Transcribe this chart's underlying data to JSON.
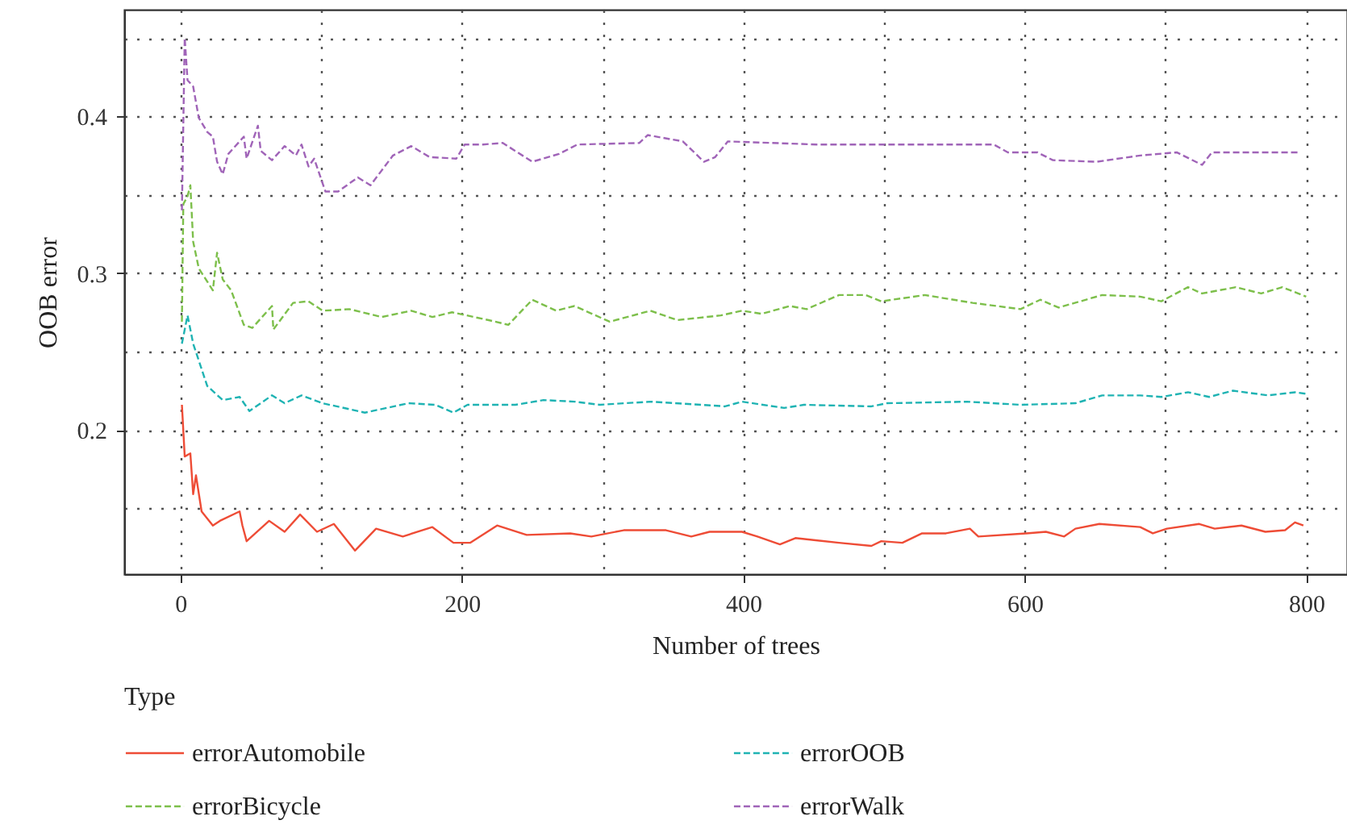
{
  "chart_data": {
    "type": "line",
    "xlabel": "Number of trees",
    "ylabel": "OOB error",
    "legend_title": "Type",
    "legend": "bottom",
    "grid": true,
    "xlim": [
      -40,
      829
    ],
    "xticks": [
      0,
      {
        "value": 100,
        "label": null
      },
      200,
      {
        "value": 300,
        "label": null
      },
      400,
      {
        "value": 500,
        "label": null
      },
      600,
      {
        "value": 700,
        "label": null
      },
      800
    ],
    "ylim": [
      0.108,
      0.468
    ],
    "yticks": [
      {
        "value": 0.15,
        "label": null
      },
      0.2,
      {
        "value": 0.25,
        "label": null
      },
      0.3,
      {
        "value": 0.35,
        "label": null
      },
      0.4,
      {
        "value": 0.45,
        "label": null
      }
    ],
    "series": [
      {
        "name": "errorAutomobile",
        "color": "#ee4c36",
        "line_style": "solid",
        "x": [
          1,
          3,
          7,
          9,
          11,
          15,
          23,
          28,
          42,
          44,
          47,
          63,
          74,
          85,
          97,
          109,
          124,
          139,
          158,
          179,
          194,
          206,
          225,
          246,
          277,
          292,
          315,
          345,
          363,
          376,
          399,
          410,
          426,
          437,
          468,
          491,
          498,
          513,
          527,
          544,
          561,
          567,
          601,
          615,
          628,
          636,
          653,
          682,
          691,
          701,
          724,
          735,
          754,
          771,
          785,
          792,
          798
        ],
        "values": [
          0.216,
          0.183,
          0.185,
          0.159,
          0.171,
          0.148,
          0.139,
          0.142,
          0.148,
          0.139,
          0.129,
          0.142,
          0.135,
          0.146,
          0.135,
          0.14,
          0.123,
          0.137,
          0.132,
          0.138,
          0.128,
          0.128,
          0.139,
          0.133,
          0.134,
          0.132,
          0.136,
          0.136,
          0.132,
          0.135,
          0.135,
          0.132,
          0.127,
          0.131,
          0.128,
          0.126,
          0.129,
          0.128,
          0.134,
          0.134,
          0.137,
          0.132,
          0.134,
          0.135,
          0.132,
          0.137,
          0.14,
          0.138,
          0.134,
          0.137,
          0.14,
          0.137,
          0.139,
          0.135,
          0.136,
          0.141,
          0.139
        ]
      },
      {
        "name": "errorBicycle",
        "color": "#7dbf4b",
        "line_style": "dashed",
        "x": [
          1,
          2,
          5,
          7,
          9,
          13,
          23,
          26,
          30,
          36,
          45,
          51,
          65,
          66,
          80,
          91,
          101,
          120,
          143,
          164,
          179,
          193,
          219,
          233,
          250,
          267,
          280,
          305,
          334,
          353,
          384,
          399,
          413,
          433,
          445,
          468,
          487,
          498,
          529,
          563,
          597,
          611,
          624,
          655,
          682,
          697,
          716,
          726,
          750,
          768,
          783,
          800
        ],
        "values": [
          0.269,
          0.344,
          0.349,
          0.356,
          0.32,
          0.303,
          0.289,
          0.313,
          0.296,
          0.289,
          0.267,
          0.265,
          0.279,
          0.264,
          0.281,
          0.282,
          0.276,
          0.277,
          0.272,
          0.276,
          0.272,
          0.275,
          0.27,
          0.267,
          0.283,
          0.276,
          0.279,
          0.269,
          0.276,
          0.27,
          0.273,
          0.276,
          0.274,
          0.279,
          0.277,
          0.286,
          0.286,
          0.282,
          0.286,
          0.281,
          0.277,
          0.283,
          0.278,
          0.286,
          0.285,
          0.282,
          0.291,
          0.287,
          0.291,
          0.287,
          0.291,
          0.285
        ]
      },
      {
        "name": "errorOOB",
        "color": "#1fb3b3",
        "line_style": "dashed",
        "x": [
          1,
          5,
          9,
          19,
          30,
          42,
          49,
          65,
          74,
          86,
          101,
          131,
          162,
          181,
          194,
          204,
          238,
          258,
          280,
          298,
          334,
          387,
          399,
          429,
          443,
          491,
          502,
          559,
          597,
          636,
          655,
          682,
          697,
          716,
          731,
          748,
          773,
          792,
          800
        ],
        "values": [
          0.255,
          0.273,
          0.255,
          0.228,
          0.219,
          0.221,
          0.212,
          0.222,
          0.217,
          0.222,
          0.217,
          0.211,
          0.217,
          0.216,
          0.211,
          0.216,
          0.216,
          0.219,
          0.218,
          0.216,
          0.218,
          0.215,
          0.218,
          0.214,
          0.216,
          0.215,
          0.217,
          0.218,
          0.216,
          0.217,
          0.222,
          0.222,
          0.221,
          0.224,
          0.221,
          0.225,
          0.222,
          0.224,
          0.223
        ]
      },
      {
        "name": "errorWalk",
        "color": "#a064b8",
        "line_style": "dashed",
        "x": [
          1,
          3,
          5,
          9,
          13,
          19,
          23,
          26,
          30,
          34,
          45,
          47,
          55,
          57,
          65,
          74,
          82,
          86,
          91,
          95,
          103,
          112,
          126,
          135,
          151,
          164,
          177,
          196,
          202,
          215,
          229,
          250,
          269,
          282,
          326,
          332,
          357,
          372,
          380,
          389,
          452,
          578,
          588,
          609,
          620,
          651,
          682,
          708,
          726,
          733,
          796
        ],
        "values": [
          0.34,
          0.45,
          0.423,
          0.419,
          0.399,
          0.39,
          0.387,
          0.371,
          0.363,
          0.376,
          0.387,
          0.373,
          0.394,
          0.378,
          0.372,
          0.381,
          0.375,
          0.382,
          0.368,
          0.373,
          0.352,
          0.352,
          0.361,
          0.356,
          0.375,
          0.381,
          0.374,
          0.373,
          0.382,
          0.382,
          0.383,
          0.371,
          0.376,
          0.382,
          0.383,
          0.388,
          0.384,
          0.371,
          0.374,
          0.384,
          0.382,
          0.382,
          0.377,
          0.377,
          0.372,
          0.371,
          0.375,
          0.377,
          0.369,
          0.377,
          0.377
        ]
      }
    ]
  }
}
